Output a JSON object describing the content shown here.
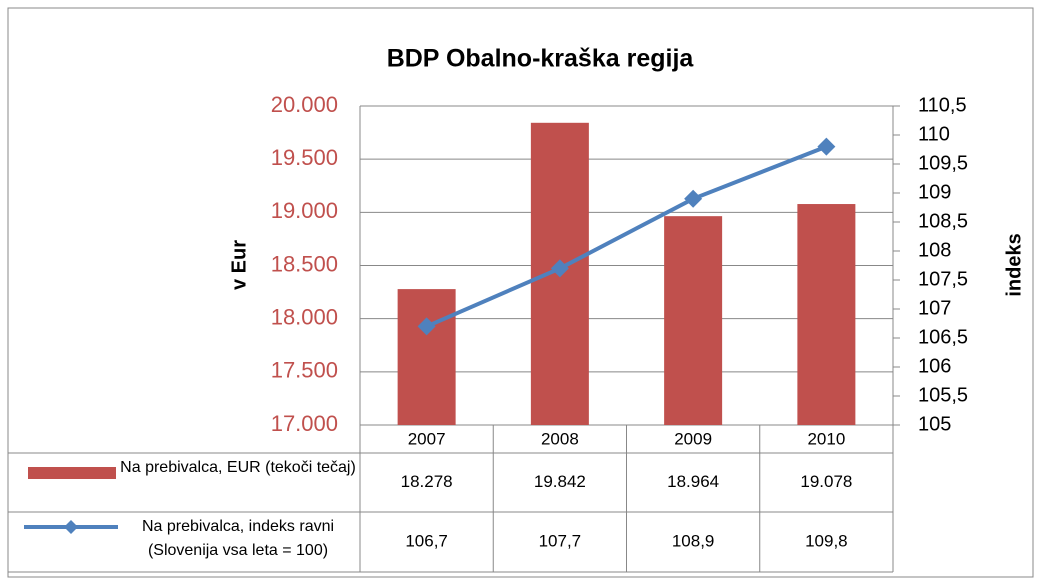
{
  "chart_data": {
    "type": "bar_line",
    "title": "BDP Obalno-kraška regija",
    "ylabel": "v Eur",
    "y2label": "indeks",
    "categories": [
      "2007",
      "2008",
      "2009",
      "2010"
    ],
    "series": [
      {
        "name": "Na prebivalca, EUR (tekoči tečaj)",
        "type": "bar",
        "color": "#c0504d",
        "values": [
          18278,
          19842,
          18964,
          19078
        ],
        "value_labels": [
          "18.278",
          "19.842",
          "18.964",
          "19.078"
        ]
      },
      {
        "name": "Na prebivalca, indeks ravni (Slovenija vsa leta = 100)",
        "type": "line",
        "axis": "y2",
        "color": "#4f81bd",
        "values": [
          106.7,
          107.7,
          108.9,
          109.8
        ],
        "value_labels": [
          "106,7",
          "107,7",
          "108,9",
          "109,8"
        ]
      }
    ],
    "ylim": [
      17000,
      20000
    ],
    "yticks": [
      {
        "value": 17000,
        "label": "17.000"
      },
      {
        "value": 17500,
        "label": "17.500"
      },
      {
        "value": 18000,
        "label": "18.000"
      },
      {
        "value": 18500,
        "label": "18.500"
      },
      {
        "value": 19000,
        "label": "19.000"
      },
      {
        "value": 19500,
        "label": "19.500"
      },
      {
        "value": 20000,
        "label": "20.000"
      }
    ],
    "y2lim": [
      105,
      110.5
    ],
    "y2ticks": [
      105,
      {
        "value": 105.5,
        "label": "105,5"
      },
      106,
      {
        "value": 106.5,
        "label": "106,5"
      },
      107,
      {
        "value": 107.5,
        "label": "107,5"
      },
      108,
      {
        "value": 108.5,
        "label": "108,5"
      },
      109,
      {
        "value": 109.5,
        "label": "109,5"
      },
      110,
      {
        "value": 110.5,
        "label": "110,5"
      }
    ],
    "grid": true
  }
}
